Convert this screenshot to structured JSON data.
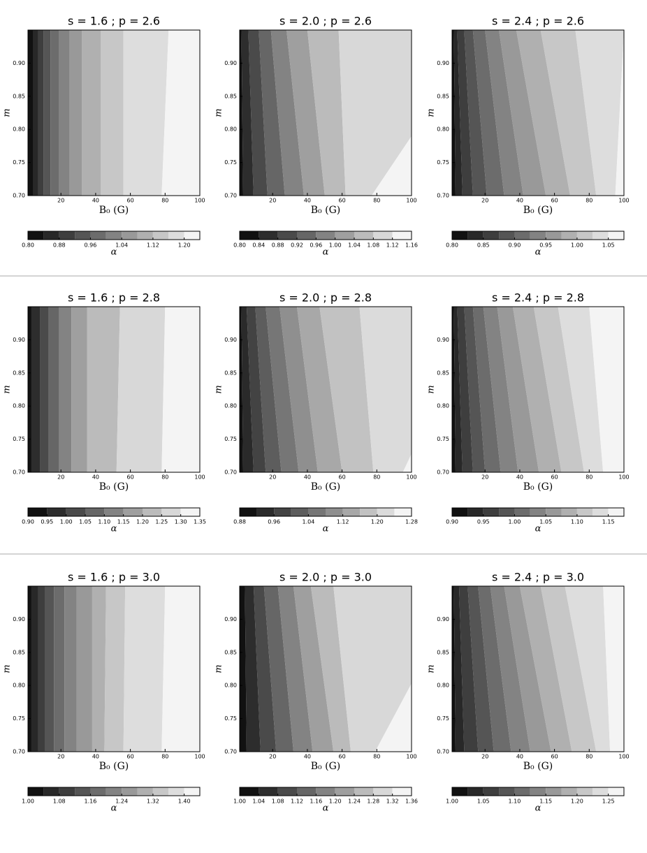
{
  "chart_data": [
    {
      "type": "contour",
      "title": "s = 1.6 ; p = 2.6",
      "xlabel": "B₀ (G)",
      "ylabel": "m",
      "cbar_label": "α",
      "xlim": [
        1,
        100
      ],
      "ylim": [
        0.7,
        0.95
      ],
      "xticks": [
        20,
        40,
        60,
        80,
        100
      ],
      "yticks": [
        {
          "value": 0.7,
          "label": "0.70"
        },
        0.75,
        {
          "value": 0.8,
          "label": "0.80"
        },
        0.85,
        {
          "value": 0.9,
          "label": "0.90"
        }
      ],
      "levels": [
        0.8,
        0.84,
        0.88,
        0.92,
        0.96,
        1.0,
        1.04,
        1.08,
        1.12,
        1.16,
        1.2,
        1.24
      ],
      "cbar_ticks": [
        {
          "value": 0.8,
          "label": "0.80"
        },
        0.88,
        0.96,
        1.04,
        1.12,
        {
          "value": 1.2,
          "label": "1.20"
        }
      ],
      "contours": [
        [
          4,
          4
        ],
        [
          7,
          7
        ],
        [
          10,
          10
        ],
        [
          14,
          14
        ],
        [
          19,
          19
        ],
        [
          25,
          25
        ],
        [
          32,
          32
        ],
        [
          43,
          43
        ],
        [
          56,
          56
        ],
        [
          78,
          82
        ]
      ]
    },
    {
      "type": "contour",
      "title": "s = 2.0 ; p = 2.6",
      "xlabel": "B₀ (G)",
      "ylabel": "m",
      "cbar_label": "α",
      "xlim": [
        1,
        100
      ],
      "ylim": [
        0.7,
        0.95
      ],
      "xticks": [
        20,
        40,
        60,
        80,
        100
      ],
      "yticks": [
        {
          "value": 0.7,
          "label": "0.70"
        },
        0.75,
        {
          "value": 0.8,
          "label": "0.80"
        },
        0.85,
        {
          "value": 0.9,
          "label": "0.90"
        }
      ],
      "levels": [
        0.8,
        0.84,
        0.88,
        0.92,
        0.96,
        1.0,
        1.04,
        1.08,
        1.12,
        1.16
      ],
      "cbar_ticks": [
        {
          "value": 0.8,
          "label": "0.80"
        },
        0.84,
        0.88,
        0.92,
        0.96,
        {
          "value": 1.0,
          "label": "1.00"
        },
        1.04,
        1.08,
        1.12,
        1.16
      ],
      "contours": [
        [
          3,
          2
        ],
        [
          9,
          6
        ],
        [
          17,
          12
        ],
        [
          27,
          19
        ],
        [
          38,
          28
        ],
        [
          50,
          40
        ],
        [
          62,
          58
        ],
        [
          77,
          141
        ]
      ]
    },
    {
      "type": "contour",
      "title": "s = 2.4 ; p = 2.6",
      "xlabel": "B₀ (G)",
      "ylabel": "m",
      "cbar_label": "α",
      "xlim": [
        1,
        100
      ],
      "ylim": [
        0.7,
        0.95
      ],
      "xticks": [
        20,
        40,
        60,
        80,
        100
      ],
      "yticks": [
        {
          "value": 0.7,
          "label": "0.70"
        },
        0.75,
        {
          "value": 0.8,
          "label": "0.80"
        },
        0.85,
        {
          "value": 0.9,
          "label": "0.90"
        }
      ],
      "levels": [
        0.8,
        0.825,
        0.85,
        0.875,
        0.9,
        0.925,
        0.95,
        0.975,
        1.0,
        1.025,
        1.05,
        1.075
      ],
      "cbar_ticks": [
        {
          "value": 0.8,
          "label": "0.80"
        },
        0.85,
        {
          "value": 0.9,
          "label": "0.90"
        },
        0.95,
        {
          "value": 1.0,
          "label": "1.00"
        },
        1.05
      ],
      "contours": [
        [
          3,
          2
        ],
        [
          7,
          4
        ],
        [
          13,
          8
        ],
        [
          21,
          13
        ],
        [
          31,
          20
        ],
        [
          42,
          28
        ],
        [
          55,
          38
        ],
        [
          69,
          52
        ],
        [
          84,
          72
        ],
        [
          95,
          100
        ]
      ]
    },
    {
      "type": "contour",
      "title": "s = 1.6 ; p = 2.8",
      "xlabel": "B₀ (G)",
      "ylabel": "m",
      "cbar_label": "α",
      "xlim": [
        1,
        100
      ],
      "ylim": [
        0.7,
        0.95
      ],
      "xticks": [
        20,
        40,
        60,
        80,
        100
      ],
      "yticks": [
        {
          "value": 0.7,
          "label": "0.70"
        },
        0.75,
        {
          "value": 0.8,
          "label": "0.80"
        },
        0.85,
        {
          "value": 0.9,
          "label": "0.90"
        }
      ],
      "levels": [
        0.9,
        0.95,
        1.0,
        1.05,
        1.1,
        1.15,
        1.2,
        1.25,
        1.3,
        1.35
      ],
      "cbar_ticks": [
        {
          "value": 0.9,
          "label": "0.90"
        },
        0.95,
        {
          "value": 1.0,
          "label": "1.00"
        },
        1.05,
        {
          "value": 1.1,
          "label": "1.10"
        },
        1.15,
        {
          "value": 1.2,
          "label": "1.20"
        },
        1.25,
        {
          "value": 1.3,
          "label": "1.30"
        },
        1.35
      ],
      "contours": [
        [
          3,
          3
        ],
        [
          8,
          8
        ],
        [
          13,
          13
        ],
        [
          19,
          19
        ],
        [
          26,
          26
        ],
        [
          35,
          35
        ],
        [
          52,
          54
        ],
        [
          78,
          80
        ]
      ]
    },
    {
      "type": "contour",
      "title": "s = 2.0 ; p = 2.8",
      "xlabel": "B₀ (G)",
      "ylabel": "m",
      "cbar_label": "α",
      "xlim": [
        1,
        100
      ],
      "ylim": [
        0.7,
        0.95
      ],
      "xticks": [
        20,
        40,
        60,
        80,
        100
      ],
      "yticks": [
        {
          "value": 0.7,
          "label": "0.70"
        },
        0.75,
        {
          "value": 0.8,
          "label": "0.80"
        },
        0.85,
        {
          "value": 0.9,
          "label": "0.90"
        }
      ],
      "levels": [
        0.88,
        0.92,
        0.96,
        1.0,
        1.04,
        1.08,
        1.12,
        1.16,
        1.2,
        1.24,
        1.28
      ],
      "cbar_ticks": [
        0.88,
        0.96,
        1.04,
        1.12,
        {
          "value": 1.2,
          "label": "1.20"
        },
        1.28
      ],
      "contours": [
        [
          3,
          2
        ],
        [
          9,
          5
        ],
        [
          16,
          10
        ],
        [
          25,
          16
        ],
        [
          35,
          24
        ],
        [
          46,
          34
        ],
        [
          60,
          47
        ],
        [
          78,
          70
        ],
        [
          95,
          140
        ]
      ]
    },
    {
      "type": "contour",
      "title": "s = 2.4 ; p = 2.8",
      "xlabel": "B₀ (G)",
      "ylabel": "m",
      "cbar_label": "α",
      "xlim": [
        1,
        100
      ],
      "ylim": [
        0.7,
        0.95
      ],
      "xticks": [
        20,
        40,
        60,
        80,
        100
      ],
      "yticks": [
        {
          "value": 0.7,
          "label": "0.70"
        },
        0.75,
        {
          "value": 0.8,
          "label": "0.80"
        },
        0.85,
        {
          "value": 0.9,
          "label": "0.90"
        }
      ],
      "levels": [
        0.9,
        0.925,
        0.95,
        0.975,
        1.0,
        1.025,
        1.05,
        1.075,
        1.1,
        1.125,
        1.15,
        1.175
      ],
      "cbar_ticks": [
        {
          "value": 0.9,
          "label": "0.90"
        },
        0.95,
        {
          "value": 1.0,
          "label": "1.00"
        },
        1.05,
        {
          "value": 1.1,
          "label": "1.10"
        },
        1.15
      ],
      "contours": [
        [
          3,
          2
        ],
        [
          7,
          4
        ],
        [
          13,
          8
        ],
        [
          20,
          13
        ],
        [
          29,
          19
        ],
        [
          39,
          27
        ],
        [
          51,
          36
        ],
        [
          64,
          48
        ],
        [
          77,
          62
        ],
        [
          88,
          80
        ]
      ]
    },
    {
      "type": "contour",
      "title": "s = 1.6 ; p = 3.0",
      "xlabel": "B₀ (G)",
      "ylabel": "m",
      "cbar_label": "α",
      "xlim": [
        1,
        100
      ],
      "ylim": [
        0.7,
        0.95
      ],
      "xticks": [
        20,
        40,
        60,
        80,
        100
      ],
      "yticks": [
        {
          "value": 0.7,
          "label": "0.70"
        },
        0.75,
        {
          "value": 0.8,
          "label": "0.80"
        },
        0.85,
        {
          "value": 0.9,
          "label": "0.90"
        }
      ],
      "levels": [
        1.0,
        1.04,
        1.08,
        1.12,
        1.16,
        1.2,
        1.24,
        1.28,
        1.32,
        1.36,
        1.4,
        1.44
      ],
      "cbar_ticks": [
        {
          "value": 1.0,
          "label": "1.00"
        },
        1.08,
        1.16,
        1.24,
        1.32,
        {
          "value": 1.4,
          "label": "1.40"
        }
      ],
      "contours": [
        [
          3,
          3
        ],
        [
          7,
          7
        ],
        [
          11,
          11
        ],
        [
          16,
          16
        ],
        [
          22,
          22
        ],
        [
          29,
          29
        ],
        [
          38,
          38
        ],
        [
          45,
          46
        ],
        [
          56,
          57
        ],
        [
          78,
          80
        ]
      ]
    },
    {
      "type": "contour",
      "title": "s = 2.0 ; p = 3.0",
      "xlabel": "B₀ (G)",
      "ylabel": "m",
      "cbar_label": "α",
      "xlim": [
        1,
        100
      ],
      "ylim": [
        0.7,
        0.95
      ],
      "xticks": [
        20,
        40,
        60,
        80,
        100
      ],
      "yticks": [
        {
          "value": 0.7,
          "label": "0.70"
        },
        0.75,
        {
          "value": 0.8,
          "label": "0.80"
        },
        0.85,
        {
          "value": 0.9,
          "label": "0.90"
        }
      ],
      "levels": [
        1.0,
        1.04,
        1.08,
        1.12,
        1.16,
        1.2,
        1.24,
        1.28,
        1.32,
        1.36
      ],
      "cbar_ticks": [
        {
          "value": 1.0,
          "label": "1.00"
        },
        1.04,
        1.08,
        1.12,
        1.16,
        {
          "value": 1.2,
          "label": "1.20"
        },
        1.24,
        1.28,
        1.32,
        1.36
      ],
      "contours": [
        [
          5,
          4
        ],
        [
          13,
          9
        ],
        [
          22,
          15
        ],
        [
          32,
          23
        ],
        [
          43,
          32
        ],
        [
          55,
          42
        ],
        [
          65,
          55
        ],
        [
          79,
          130
        ]
      ]
    },
    {
      "type": "contour",
      "title": "s = 2.4 ; p = 3.0",
      "xlabel": "B₀ (G)",
      "ylabel": "m",
      "cbar_label": "α",
      "xlim": [
        1,
        100
      ],
      "ylim": [
        0.7,
        0.95
      ],
      "xticks": [
        20,
        40,
        60,
        80,
        100
      ],
      "yticks": [
        {
          "value": 0.7,
          "label": "0.70"
        },
        0.75,
        {
          "value": 0.8,
          "label": "0.80"
        },
        0.85,
        {
          "value": 0.9,
          "label": "0.90"
        }
      ],
      "levels": [
        1.0,
        1.025,
        1.05,
        1.075,
        1.1,
        1.125,
        1.15,
        1.175,
        1.2,
        1.225,
        1.25,
        1.275
      ],
      "cbar_ticks": [
        {
          "value": 1.0,
          "label": "1.00"
        },
        1.05,
        {
          "value": 1.1,
          "label": "1.10"
        },
        1.15,
        {
          "value": 1.2,
          "label": "1.20"
        },
        1.25
      ],
      "contours": [
        [
          3,
          2
        ],
        [
          8,
          5
        ],
        [
          16,
          10
        ],
        [
          25,
          16
        ],
        [
          35,
          23
        ],
        [
          46,
          31
        ],
        [
          58,
          40
        ],
        [
          70,
          52
        ],
        [
          84,
          66
        ],
        [
          92,
          88
        ]
      ]
    }
  ]
}
